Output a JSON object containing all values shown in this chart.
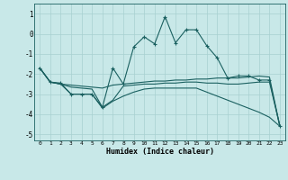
{
  "xlabel": "Humidex (Indice chaleur)",
  "background_color": "#c8e8e8",
  "grid_color": "#a8d0d0",
  "line_color": "#1a6060",
  "xlim": [
    -0.5,
    23.5
  ],
  "ylim": [
    -5.3,
    1.5
  ],
  "yticks": [
    1,
    0,
    -1,
    -2,
    -3,
    -4,
    -5
  ],
  "xticks": [
    0,
    1,
    2,
    3,
    4,
    5,
    6,
    7,
    8,
    9,
    10,
    11,
    12,
    13,
    14,
    15,
    16,
    17,
    18,
    19,
    20,
    21,
    22,
    23
  ],
  "line1_x": [
    0,
    1,
    2,
    3,
    4,
    5,
    6,
    7,
    8,
    9,
    10,
    11,
    12,
    13,
    14,
    15,
    16,
    17,
    18,
    19,
    20,
    21,
    22,
    23
  ],
  "line1_y": [
    -1.7,
    -2.4,
    -2.45,
    -3.0,
    -3.0,
    -3.0,
    -3.65,
    -1.7,
    -2.5,
    -0.65,
    -0.15,
    -0.5,
    0.85,
    -0.45,
    0.2,
    0.2,
    -0.6,
    -1.2,
    -2.2,
    -2.1,
    -2.1,
    -2.3,
    -2.3,
    -4.6
  ],
  "line2_x": [
    0,
    1,
    2,
    3,
    4,
    5,
    6,
    7,
    8,
    9,
    10,
    11,
    12,
    13,
    14,
    15,
    16,
    17,
    18,
    19,
    20,
    21,
    22,
    23
  ],
  "line2_y": [
    -1.7,
    -2.4,
    -2.5,
    -2.55,
    -2.6,
    -2.65,
    -2.7,
    -2.55,
    -2.5,
    -2.45,
    -2.4,
    -2.35,
    -2.35,
    -2.3,
    -2.3,
    -2.25,
    -2.25,
    -2.2,
    -2.2,
    -2.2,
    -2.15,
    -2.1,
    -2.15,
    -4.6
  ],
  "line3_x": [
    0,
    1,
    2,
    3,
    4,
    5,
    6,
    7,
    8,
    9,
    10,
    11,
    12,
    13,
    14,
    15,
    16,
    17,
    18,
    19,
    20,
    21,
    22,
    23
  ],
  "line3_y": [
    -1.7,
    -2.4,
    -2.5,
    -2.65,
    -2.7,
    -2.75,
    -3.65,
    -3.3,
    -2.6,
    -2.55,
    -2.5,
    -2.5,
    -2.45,
    -2.45,
    -2.4,
    -2.4,
    -2.45,
    -2.45,
    -2.5,
    -2.5,
    -2.45,
    -2.4,
    -2.4,
    -4.6
  ],
  "line4_x": [
    0,
    1,
    2,
    3,
    4,
    5,
    6,
    7,
    8,
    9,
    10,
    11,
    12,
    13,
    14,
    15,
    16,
    17,
    18,
    19,
    20,
    21,
    22,
    23
  ],
  "line4_y": [
    -1.7,
    -2.4,
    -2.5,
    -3.0,
    -3.0,
    -3.0,
    -3.7,
    -3.35,
    -3.1,
    -2.9,
    -2.75,
    -2.7,
    -2.7,
    -2.7,
    -2.7,
    -2.7,
    -2.9,
    -3.1,
    -3.3,
    -3.5,
    -3.7,
    -3.9,
    -4.15,
    -4.6
  ]
}
